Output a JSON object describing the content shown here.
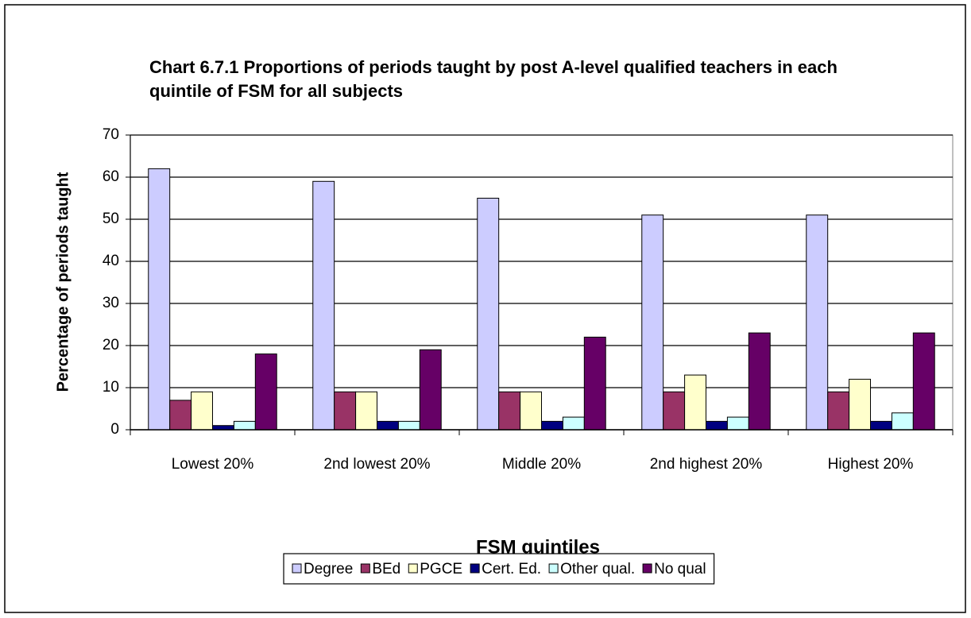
{
  "chart_data": {
    "type": "bar",
    "title": "Chart 6.7.1 Proportions of periods taught by post A-level qualified teachers in each quintile of FSM for all subjects",
    "x_label": "FSM quintiles",
    "y_label": "Percentage  of periods taught",
    "categories": [
      "Lowest 20%",
      "2nd lowest 20%",
      "Middle 20%",
      "2nd highest 20%",
      "Highest 20%"
    ],
    "series": [
      {
        "name": "Degree",
        "color": "#ccccff",
        "values": [
          62,
          59,
          55,
          51,
          51
        ]
      },
      {
        "name": "BEd",
        "color": "#993366",
        "values": [
          7,
          9,
          9,
          9,
          9
        ]
      },
      {
        "name": "PGCE",
        "color": "#ffffcc",
        "values": [
          9,
          9,
          9,
          13,
          12
        ]
      },
      {
        "name": "Cert. Ed.",
        "color": "#000080",
        "values": [
          1,
          2,
          2,
          2,
          2
        ]
      },
      {
        "name": "Other qual.",
        "color": "#ccffff",
        "values": [
          2,
          2,
          3,
          3,
          4
        ]
      },
      {
        "name": "No qual",
        "color": "#660066",
        "values": [
          18,
          19,
          22,
          23,
          23
        ]
      }
    ],
    "ylim": [
      0,
      70
    ],
    "yticks": [
      0,
      10,
      20,
      30,
      40,
      50,
      60,
      70
    ],
    "grid": true,
    "legend": "bottom"
  }
}
